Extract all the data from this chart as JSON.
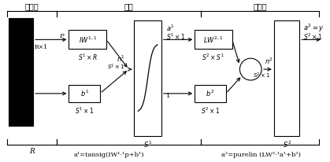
{
  "bg_color": "#ffffff",
  "input_layer_label": "输入层",
  "hidden_layer_label": "隐层",
  "output_layer_label": "输出层",
  "formula1": "a¹=tansig(IW¹·¹p+b¹)",
  "formula2": "a²=purelin (LW²·¹a¹+b²)"
}
